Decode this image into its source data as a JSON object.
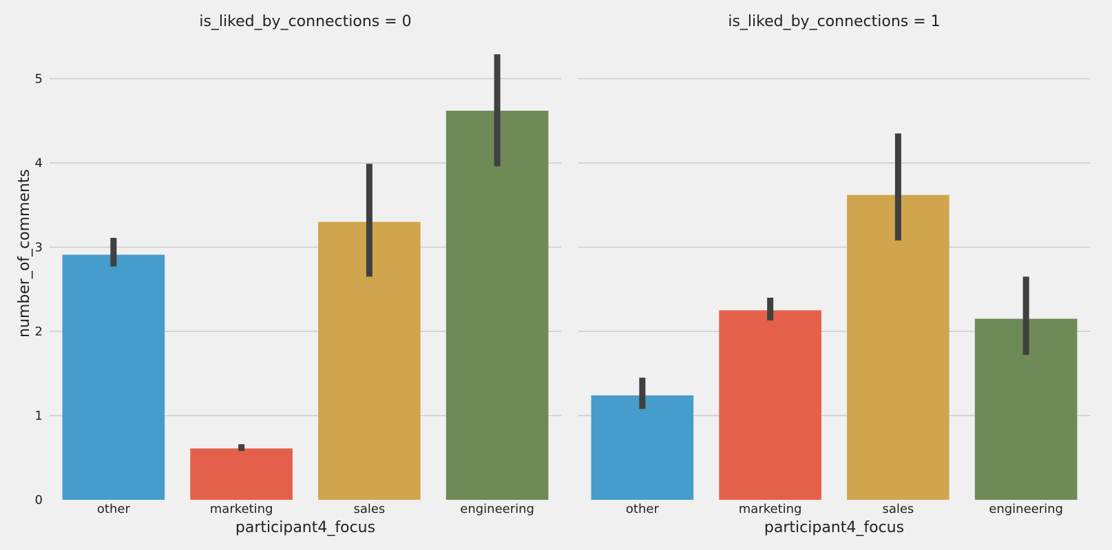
{
  "chart_data": {
    "type": "bar",
    "ylabel": "number_of_comments",
    "ylim": [
      0,
      5.35
    ],
    "yticks": [
      0,
      1,
      2,
      3,
      4,
      5
    ],
    "grid": true,
    "colors": {
      "other": "#469ccb",
      "marketing": "#e4604b",
      "sales": "#d0a54d",
      "engineering": "#6e8a57",
      "errorbar": "#404040"
    },
    "panels": [
      {
        "title": "is_liked_by_connections = 0",
        "xlabel": "participant4_focus",
        "categories": [
          "other",
          "marketing",
          "sales",
          "engineering"
        ],
        "values": [
          2.91,
          0.61,
          3.3,
          4.62
        ],
        "ci_low": [
          2.77,
          0.58,
          2.65,
          3.96
        ],
        "ci_high": [
          3.11,
          0.66,
          3.99,
          5.29
        ]
      },
      {
        "title": "is_liked_by_connections = 1",
        "xlabel": "participant4_focus",
        "categories": [
          "other",
          "marketing",
          "sales",
          "engineering"
        ],
        "values": [
          1.24,
          2.25,
          3.62,
          2.15
        ],
        "ci_low": [
          1.08,
          2.13,
          3.08,
          1.72
        ],
        "ci_high": [
          1.45,
          2.4,
          4.35,
          2.65
        ]
      }
    ]
  }
}
